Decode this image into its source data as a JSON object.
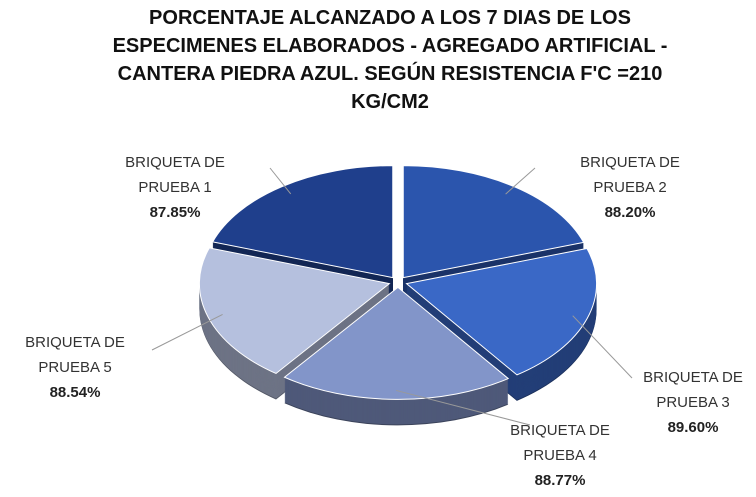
{
  "chart_data": {
    "type": "pie3d",
    "title": "PORCENTAJE ALCANZADO A LOS 7 DIAS DE LOS ESPECIMENES ELABORADOS - AGREGADO ARTIFICIAL - CANTERA PIEDRA AZUL. SEGÚN RESISTENCIA F'C =210 KG/CM2",
    "categories": [
      "BRIQUETA DE PRUEBA 1",
      "BRIQUETA DE PRUEBA 2",
      "BRIQUETA DE PRUEBA 3",
      "BRIQUETA DE PRUEBA 4",
      "BRIQUETA DE PRUEBA 5"
    ],
    "values": [
      87.85,
      88.2,
      89.6,
      88.77,
      88.54
    ],
    "value_labels": [
      "87.85%",
      "88.20%",
      "89.60%",
      "88.77%",
      "88.54%"
    ],
    "colors": [
      "#1f3f8c",
      "#2b55ad",
      "#3a68c6",
      "#8295c9",
      "#b5c0de"
    ]
  }
}
